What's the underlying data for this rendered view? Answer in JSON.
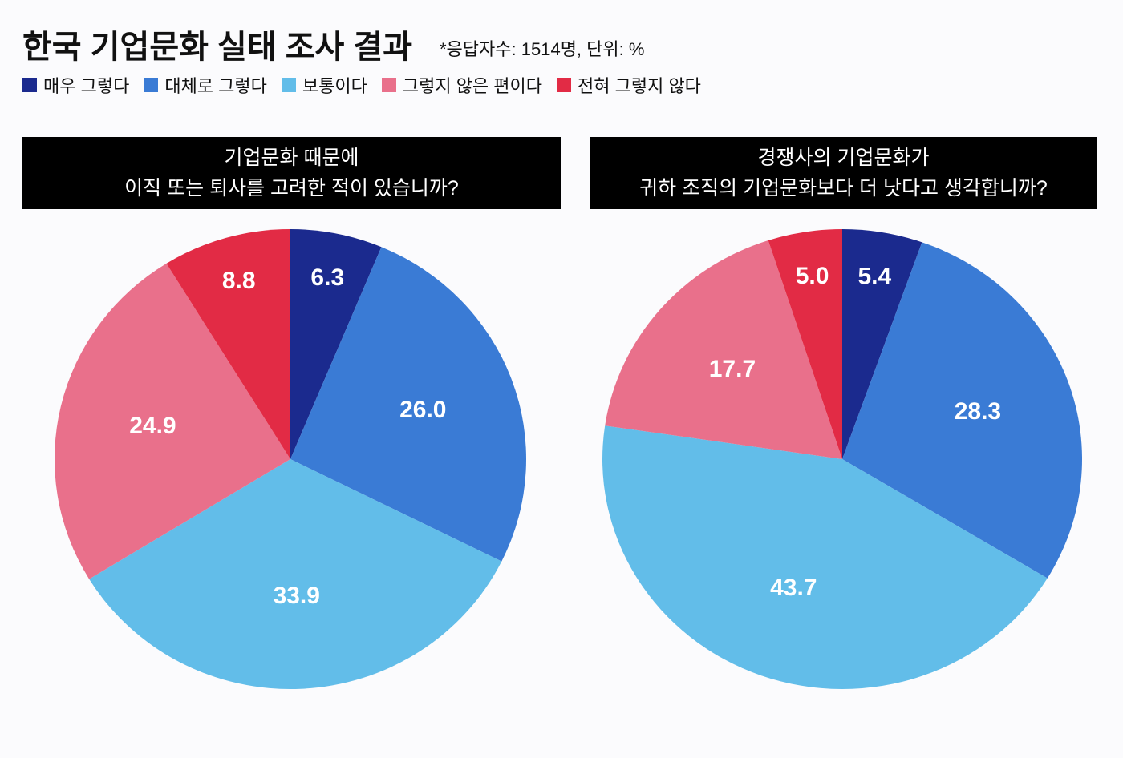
{
  "title": "한국 기업문화 실태 조사 결과",
  "note": "*응답자수: 1514명, 단위: %",
  "legend": [
    {
      "label": "매우 그렇다",
      "color": "#1b2a8e"
    },
    {
      "label": "대체로 그렇다",
      "color": "#3a7bd5"
    },
    {
      "label": "보통이다",
      "color": "#62bde9"
    },
    {
      "label": "그렇지 않은 편이다",
      "color": "#e9708b"
    },
    {
      "label": "전혀 그렇지 않다",
      "color": "#e22b45"
    }
  ],
  "chart_data": [
    {
      "type": "pie",
      "title_line1": "기업문화 때문에",
      "title_line2": "이직 또는 퇴사를 고려한 적이 있습니까?",
      "categories": [
        "매우 그렇다",
        "대체로 그렇다",
        "보통이다",
        "그렇지 않은 편이다",
        "전혀 그렇지 않다"
      ],
      "values": [
        6.3,
        26.0,
        33.9,
        24.9,
        8.8
      ],
      "labels": [
        "6.3",
        "26.0",
        "33.9",
        "24.9",
        "8.8"
      ],
      "start": "top",
      "direction": "clockwise"
    },
    {
      "type": "pie",
      "title_line1": "경쟁사의 기업문화가",
      "title_line2": "귀하 조직의 기업문화보다 더 낫다고 생각합니까?",
      "categories": [
        "매우 그렇다",
        "대체로 그렇다",
        "보통이다",
        "그렇지 않은 편이다",
        "전혀 그렇지 않다"
      ],
      "values": [
        5.4,
        28.3,
        43.7,
        17.7,
        5.0
      ],
      "labels": [
        "5.4",
        "28.3",
        "43.7",
        "17.7",
        "5.0"
      ],
      "start": "top",
      "direction": "clockwise"
    }
  ]
}
